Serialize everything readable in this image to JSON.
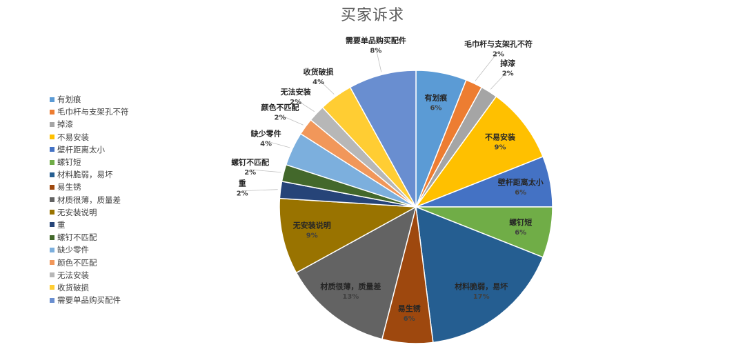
{
  "chart_data": {
    "type": "pie",
    "title": "买家诉求",
    "legend_position": "left",
    "slices": [
      {
        "label": "有划痕",
        "pct_label": "6%",
        "value": 6,
        "color": "#5b9bd5"
      },
      {
        "label": "毛巾杆与支架孔不符",
        "pct_label": "2%",
        "value": 2,
        "color": "#ed7d31"
      },
      {
        "label": "掉漆",
        "pct_label": "2%",
        "value": 2,
        "color": "#a5a5a5"
      },
      {
        "label": "不易安装",
        "pct_label": "9%",
        "value": 9,
        "color": "#ffc000"
      },
      {
        "label": "壁杆距离太小",
        "pct_label": "6%",
        "value": 6,
        "color": "#4472c4"
      },
      {
        "label": "螺钉短",
        "pct_label": "6%",
        "value": 6,
        "color": "#70ad47"
      },
      {
        "label": "材料脆弱，易坏",
        "pct_label": "17%",
        "value": 17,
        "color": "#255e91"
      },
      {
        "label": "易生锈",
        "pct_label": "6%",
        "value": 6,
        "color": "#9e480e"
      },
      {
        "label": "材质很薄，质量差",
        "pct_label": "13%",
        "value": 13,
        "color": "#636363"
      },
      {
        "label": "无安装说明",
        "pct_label": "9%",
        "value": 9,
        "color": "#997300"
      },
      {
        "label": "重",
        "pct_label": "2%",
        "value": 2,
        "color": "#264478"
      },
      {
        "label": "螺钉不匹配",
        "pct_label": "2%",
        "value": 2,
        "color": "#43682b"
      },
      {
        "label": "缺少零件",
        "pct_label": "4%",
        "value": 4,
        "color": "#7cafdd"
      },
      {
        "label": "颜色不匹配",
        "pct_label": "2%",
        "value": 2,
        "color": "#f1975a"
      },
      {
        "label": "无法安装",
        "pct_label": "2%",
        "value": 2,
        "color": "#b7b7b7"
      },
      {
        "label": "收货破损",
        "pct_label": "4%",
        "value": 4,
        "color": "#ffcd33"
      },
      {
        "label": "需要单品购买配件",
        "pct_label": "8%",
        "value": 8,
        "color": "#698ed0"
      }
    ]
  }
}
